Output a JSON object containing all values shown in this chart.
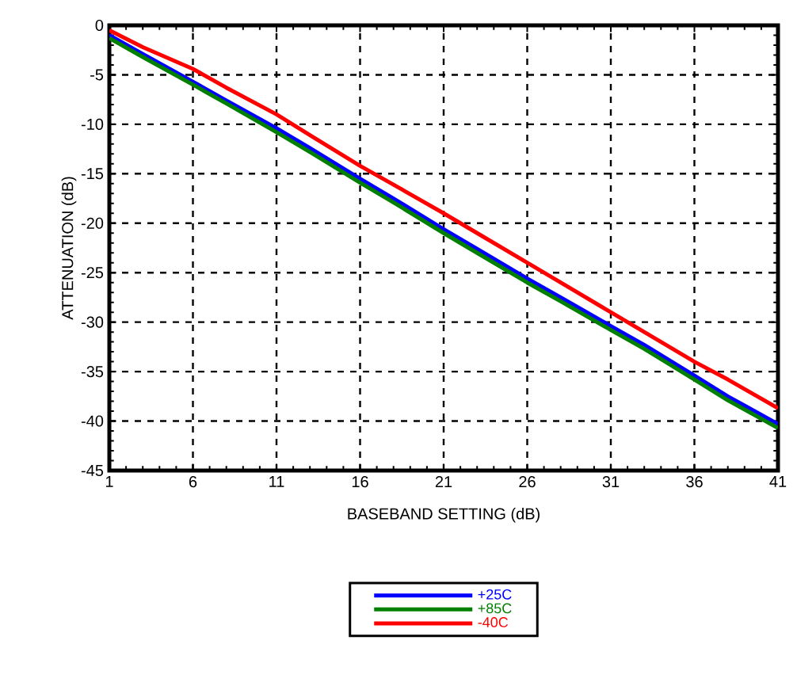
{
  "chart_data": {
    "type": "line",
    "xlabel": "BASEBAND SETTING (dB)",
    "ylabel": "ATTENUATION (dB)",
    "x": [
      1,
      3,
      6,
      8,
      11,
      13,
      16,
      18,
      21,
      23,
      26,
      28,
      31,
      33,
      36,
      38,
      41
    ],
    "series": [
      {
        "name": "+25C",
        "color": "#0000ff",
        "values": [
          -1.0,
          -2.9,
          -5.7,
          -7.6,
          -10.4,
          -12.4,
          -15.5,
          -17.5,
          -20.6,
          -22.6,
          -25.6,
          -27.5,
          -30.4,
          -32.3,
          -35.4,
          -37.5,
          -40.3
        ]
      },
      {
        "name": "+85C",
        "color": "#008000",
        "values": [
          -1.3,
          -3.2,
          -6.0,
          -7.9,
          -10.8,
          -12.8,
          -15.9,
          -17.9,
          -21.0,
          -23.0,
          -26.0,
          -27.9,
          -30.8,
          -32.7,
          -35.8,
          -37.9,
          -40.7
        ]
      },
      {
        "name": "-40C",
        "color": "#ff0000",
        "values": [
          -0.5,
          -2.2,
          -4.4,
          -6.3,
          -9.0,
          -11.1,
          -14.2,
          -16.1,
          -19.0,
          -21.0,
          -24.0,
          -26.0,
          -29.0,
          -31.0,
          -34.0,
          -35.8,
          -38.7
        ]
      }
    ],
    "xlim": [
      1,
      41
    ],
    "ylim": [
      -45,
      0
    ],
    "xticks": [
      1,
      6,
      11,
      16,
      21,
      26,
      31,
      36,
      41
    ],
    "yticks": [
      -45,
      -40,
      -35,
      -30,
      -25,
      -20,
      -15,
      -10,
      -5,
      0
    ],
    "grid": true,
    "legend": "bottom",
    "line_style": "solid"
  }
}
